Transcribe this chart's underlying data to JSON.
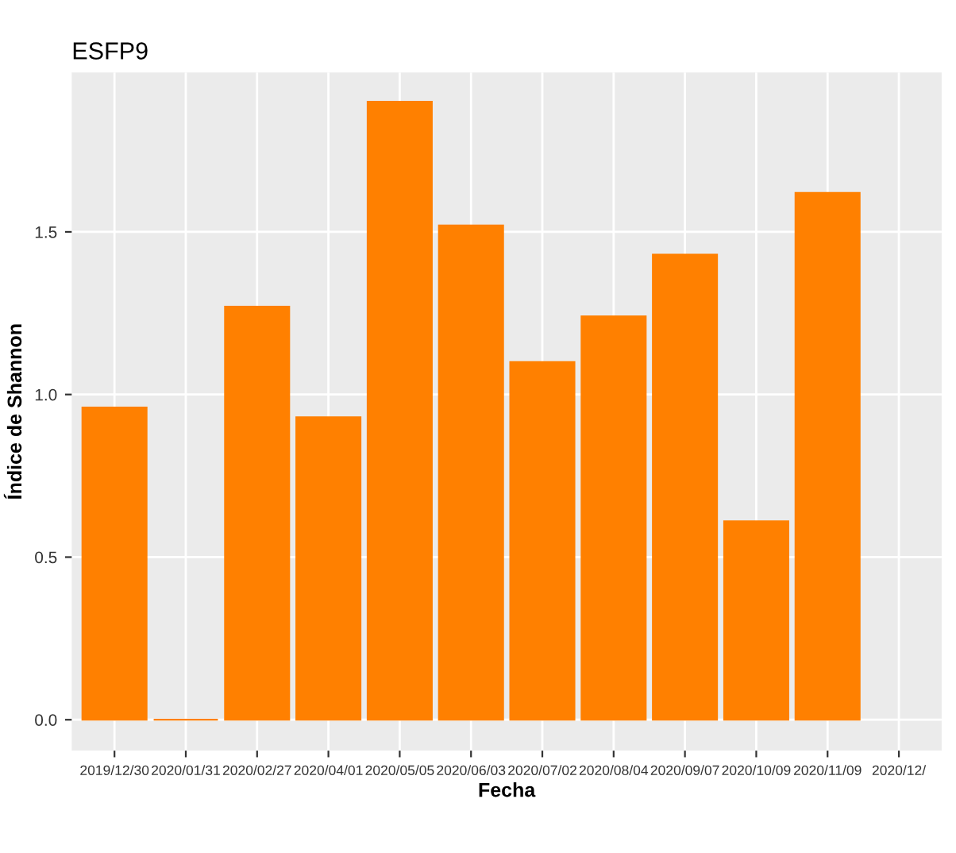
{
  "chart_data": {
    "type": "bar",
    "title": "ESFP9",
    "xlabel": "Fecha",
    "ylabel": "Índice de Shannon",
    "categories": [
      "2019/12/30",
      "2020/01/31",
      "2020/02/27",
      "2020/04/01",
      "2020/05/05",
      "2020/06/03",
      "2020/07/02",
      "2020/08/04",
      "2020/09/07",
      "2020/10/09",
      "2020/11/09",
      "2020/12/"
    ],
    "values": [
      0.96,
      0.0,
      1.27,
      0.93,
      1.9,
      1.52,
      1.1,
      1.24,
      1.43,
      0.61,
      1.62,
      null
    ],
    "color": "#ff8000",
    "ylim": [
      -0.095,
      1.99
    ],
    "yticks": [
      {
        "value": 0,
        "label": "0.0"
      },
      {
        "value": 0.5,
        "label": "0.5"
      },
      {
        "value": 1.0,
        "label": "1.0"
      },
      {
        "value": 1.5,
        "label": "1.5"
      }
    ],
    "grid": true
  }
}
